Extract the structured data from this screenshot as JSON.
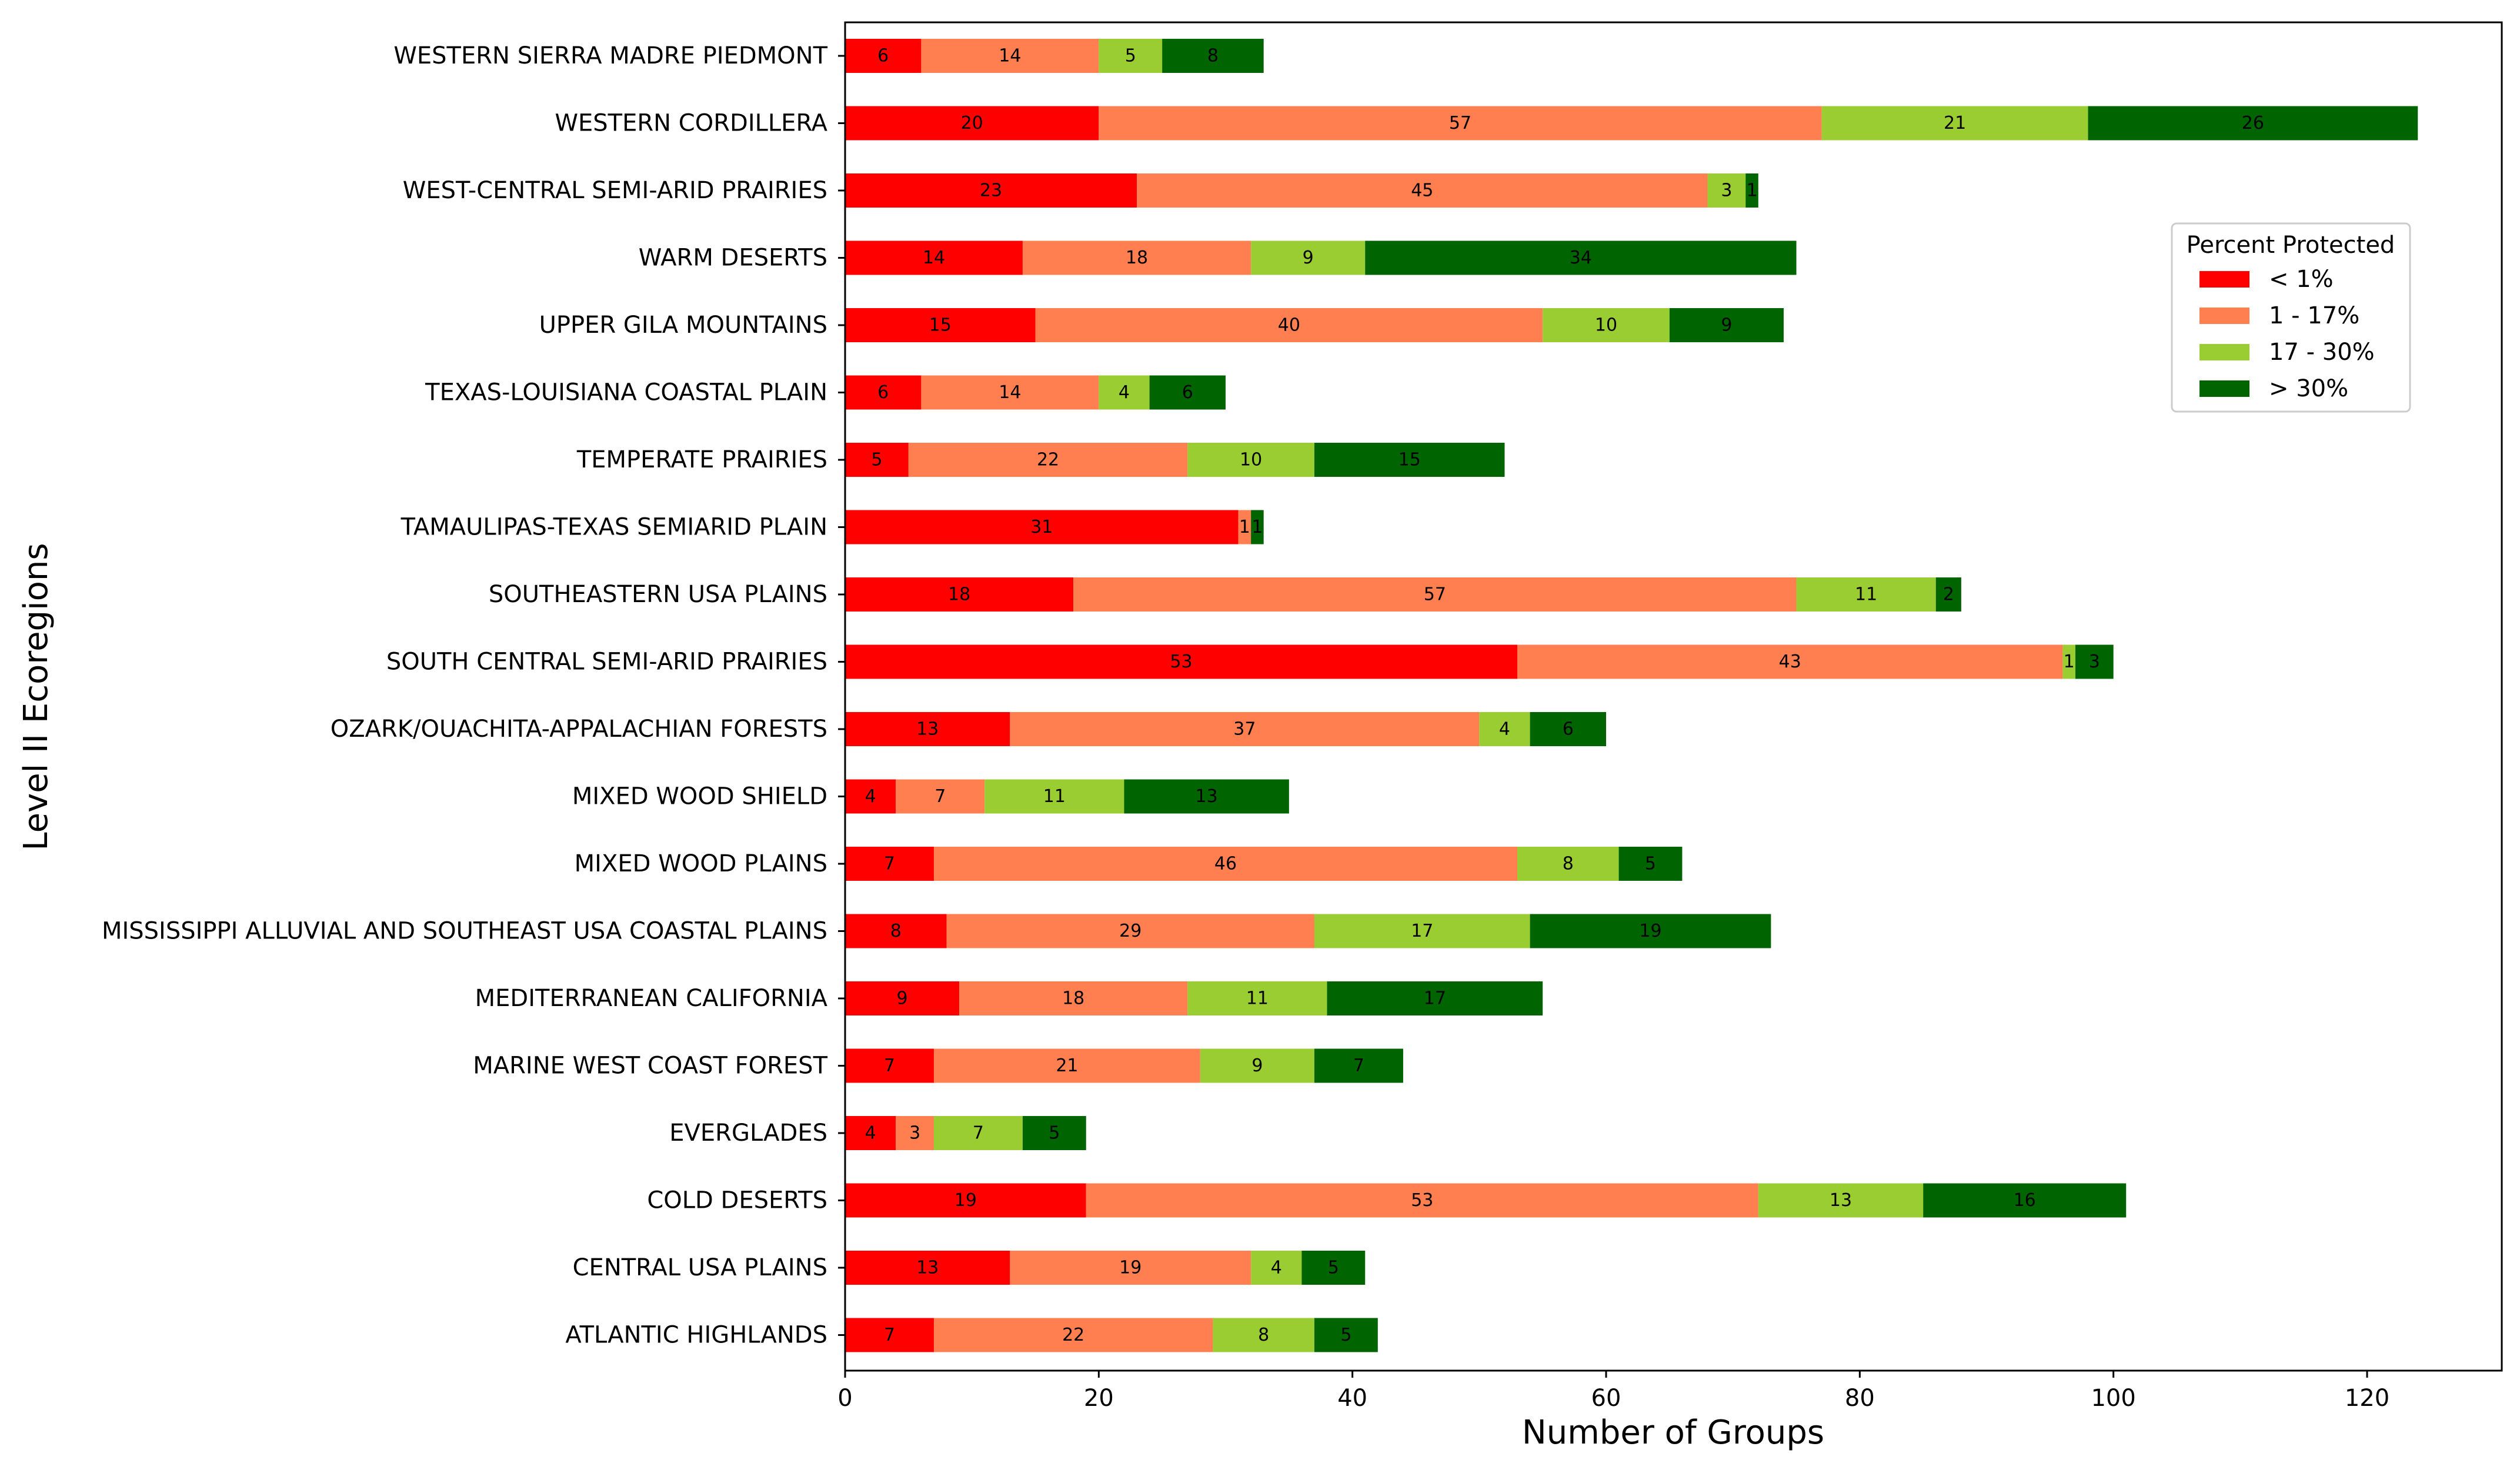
{
  "chart_data": {
    "type": "bar",
    "orientation": "horizontal",
    "stacked": true,
    "title": "",
    "xlabel": "Number of Groups",
    "ylabel": "Level II Ecoregions",
    "xlim": [
      0,
      130
    ],
    "xticks": [
      0,
      20,
      40,
      60,
      80,
      100,
      120
    ],
    "grid": false,
    "categories": [
      "WESTERN SIERRA MADRE PIEDMONT",
      "WESTERN CORDILLERA",
      "WEST-CENTRAL SEMI-ARID PRAIRIES",
      "WARM DESERTS",
      "UPPER GILA MOUNTAINS",
      "TEXAS-LOUISIANA COASTAL PLAIN",
      "TEMPERATE PRAIRIES",
      "TAMAULIPAS-TEXAS SEMIARID PLAIN",
      "SOUTHEASTERN USA PLAINS",
      "SOUTH CENTRAL SEMI-ARID PRAIRIES",
      "OZARK/OUACHITA-APPALACHIAN FORESTS",
      "MIXED WOOD SHIELD",
      "MIXED WOOD PLAINS",
      "MISSISSIPPI ALLUVIAL AND SOUTHEAST USA COASTAL PLAINS",
      "MEDITERRANEAN CALIFORNIA",
      "MARINE WEST COAST FOREST",
      "EVERGLADES",
      "COLD DESERTS",
      "CENTRAL USA PLAINS",
      "ATLANTIC HIGHLANDS"
    ],
    "series": [
      {
        "name": "< 1%",
        "color": "#ff0000",
        "values": [
          6,
          20,
          23,
          14,
          15,
          6,
          5,
          31,
          18,
          53,
          13,
          4,
          7,
          8,
          9,
          7,
          4,
          19,
          13,
          7
        ]
      },
      {
        "name": "1 - 17%",
        "color": "#ff7f50",
        "values": [
          14,
          57,
          45,
          18,
          40,
          14,
          22,
          1,
          57,
          43,
          37,
          7,
          46,
          29,
          18,
          21,
          3,
          53,
          19,
          22
        ]
      },
      {
        "name": "17 - 30%",
        "color": "#9acd32",
        "values": [
          5,
          21,
          3,
          9,
          10,
          4,
          10,
          0,
          11,
          1,
          4,
          11,
          8,
          17,
          11,
          9,
          7,
          13,
          4,
          8
        ]
      },
      {
        "name": "> 30%",
        "color": "#006400",
        "values": [
          8,
          26,
          1,
          34,
          9,
          6,
          15,
          1,
          2,
          3,
          6,
          13,
          5,
          19,
          17,
          7,
          5,
          16,
          5,
          5
        ]
      }
    ],
    "legend": {
      "title": "Percent Protected",
      "placement": "upper-right"
    }
  }
}
